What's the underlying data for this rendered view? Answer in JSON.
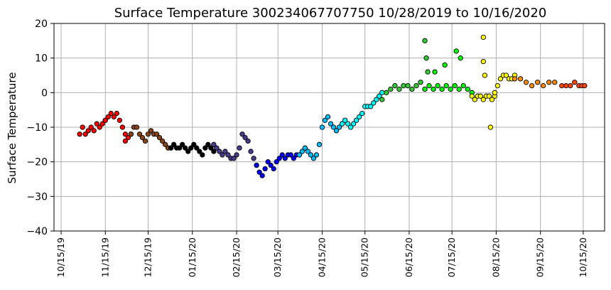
{
  "chart_data": {
    "type": "scatter",
    "title": "Surface Temperature 300234067707750  10/28/2019 to 10/16/2020",
    "xlabel": "",
    "ylabel": "Surface Temperature",
    "x_range": [
      "2019-10-10",
      "2020-10-30"
    ],
    "ylim": [
      -40,
      20
    ],
    "yticks": [
      -40,
      -30,
      -20,
      -10,
      0,
      10,
      20
    ],
    "xticks": [
      "2019-10-15",
      "2019-11-15",
      "2019-12-15",
      "2020-01-15",
      "2020-02-15",
      "2020-03-15",
      "2020-04-15",
      "2020-05-15",
      "2020-06-15",
      "2020-07-15",
      "2020-08-15",
      "2020-09-15",
      "2020-10-15"
    ],
    "xtick_labels": [
      "10/15/19",
      "11/15/19",
      "12/15/19",
      "01/15/20",
      "02/15/20",
      "03/15/20",
      "04/15/20",
      "05/15/20",
      "06/15/20",
      "07/15/20",
      "08/15/20",
      "09/15/20",
      "10/15/20"
    ],
    "grid": true,
    "series": [
      {
        "color": "#ff0000",
        "x": [
          "2019-10-28",
          "2019-10-30",
          "2019-11-01",
          "2019-11-03",
          "2019-11-05",
          "2019-11-07",
          "2019-11-09",
          "2019-11-11",
          "2019-11-13",
          "2019-11-15"
        ],
        "y": [
          -12,
          -10,
          -12,
          -11,
          -10,
          -11,
          -9,
          -10,
          -9,
          -8
        ]
      },
      {
        "color": "#ff0000",
        "x": [
          "2019-11-15",
          "2019-11-17",
          "2019-11-19",
          "2019-11-21",
          "2019-11-23",
          "2019-11-25",
          "2019-11-27",
          "2019-11-29"
        ],
        "y": [
          -8,
          -7,
          -6,
          -7,
          -6,
          -8,
          -10,
          -12
        ]
      },
      {
        "color": "#ff0000",
        "x": [
          "2019-11-29",
          "2019-12-01",
          "2019-12-03"
        ],
        "y": [
          -14,
          -13,
          -12
        ]
      },
      {
        "color": "#8b4513",
        "x": [
          "2019-12-03",
          "2019-12-05",
          "2019-12-07",
          "2019-12-09",
          "2019-12-11",
          "2019-12-13",
          "2019-12-15",
          "2019-12-17",
          "2019-12-19",
          "2019-12-21",
          "2019-12-23",
          "2019-12-25",
          "2019-12-27",
          "2019-12-29",
          "2019-12-31"
        ],
        "y": [
          -12,
          -10,
          -10,
          -12,
          -13,
          -14,
          -12,
          -11,
          -12,
          -12,
          -13,
          -14,
          -15,
          -16,
          -16
        ]
      },
      {
        "color": "#000000",
        "x": [
          "2019-12-31",
          "2020-01-02",
          "2020-01-04",
          "2020-01-06",
          "2020-01-08",
          "2020-01-10",
          "2020-01-12",
          "2020-01-14",
          "2020-01-16",
          "2020-01-18",
          "2020-01-20",
          "2020-01-22",
          "2020-01-24",
          "2020-01-26",
          "2020-01-28",
          "2020-01-30"
        ],
        "y": [
          -16,
          -15,
          -16,
          -16,
          -15,
          -16,
          -17,
          -16,
          -15,
          -16,
          -17,
          -18,
          -16,
          -15,
          -16,
          -17
        ]
      },
      {
        "color": "#483d8b",
        "x": [
          "2020-01-30",
          "2020-02-01",
          "2020-02-03",
          "2020-02-05",
          "2020-02-07",
          "2020-02-09",
          "2020-02-11",
          "2020-02-13",
          "2020-02-15",
          "2020-02-17",
          "2020-02-19",
          "2020-02-21",
          "2020-02-23",
          "2020-02-25",
          "2020-02-27",
          "2020-02-29"
        ],
        "y": [
          -15,
          -16,
          -17,
          -18,
          -17,
          -18,
          -19,
          -19,
          -18,
          -16,
          -12,
          -13,
          -14,
          -17,
          -19,
          -21
        ]
      },
      {
        "color": "#0000ff",
        "x": [
          "2020-02-29",
          "2020-03-02",
          "2020-03-04",
          "2020-03-06",
          "2020-03-08",
          "2020-03-10",
          "2020-03-12",
          "2020-03-14",
          "2020-03-16",
          "2020-03-18",
          "2020-03-20",
          "2020-03-22",
          "2020-03-24",
          "2020-03-26",
          "2020-03-28",
          "2020-03-30"
        ],
        "y": [
          -21,
          -23,
          -24,
          -22,
          -20,
          -21,
          -22,
          -20,
          -19,
          -18,
          -19,
          -18,
          -18,
          -19,
          -18,
          -18
        ]
      },
      {
        "color": "#00bfff",
        "x": [
          "2020-03-30",
          "2020-04-01",
          "2020-04-03",
          "2020-04-05",
          "2020-04-07",
          "2020-04-09",
          "2020-04-11",
          "2020-04-13",
          "2020-04-15",
          "2020-04-17",
          "2020-04-19",
          "2020-04-21",
          "2020-04-23",
          "2020-04-25",
          "2020-04-27",
          "2020-04-29"
        ],
        "y": [
          -18,
          -17,
          -16,
          -17,
          -18,
          -19,
          -18,
          -15,
          -10,
          -8,
          -7,
          -9,
          -10,
          -11,
          -10,
          -9
        ]
      },
      {
        "color": "#00ffff",
        "x": [
          "2020-04-29",
          "2020-05-01",
          "2020-05-03",
          "2020-05-05",
          "2020-05-07",
          "2020-05-09",
          "2020-05-11",
          "2020-05-13",
          "2020-05-15",
          "2020-05-17",
          "2020-05-19",
          "2020-05-21",
          "2020-05-23",
          "2020-05-25",
          "2020-05-27"
        ],
        "y": [
          -9,
          -8,
          -9,
          -10,
          -9,
          -8,
          -7,
          -6,
          -4,
          -4,
          -4,
          -3,
          -2,
          -1,
          0
        ]
      },
      {
        "color": "#32cd32",
        "x": [
          "2020-05-27",
          "2020-05-30",
          "2020-06-02",
          "2020-06-05",
          "2020-06-08",
          "2020-06-11",
          "2020-06-14",
          "2020-06-17",
          "2020-06-20",
          "2020-06-23",
          "2020-06-26"
        ],
        "y": [
          -2,
          0,
          1,
          2,
          1,
          2,
          2,
          1,
          2,
          3,
          1
        ]
      },
      {
        "color": "#32cd32",
        "x": [
          "2020-06-26",
          "2020-06-27",
          "2020-06-28"
        ],
        "y": [
          15,
          10,
          6
        ]
      },
      {
        "color": "#00ff00",
        "x": [
          "2020-06-26",
          "2020-06-29",
          "2020-07-02",
          "2020-07-05",
          "2020-07-08",
          "2020-07-11",
          "2020-07-14",
          "2020-07-17",
          "2020-07-20",
          "2020-07-23",
          "2020-07-26",
          "2020-07-29"
        ],
        "y": [
          1,
          2,
          1,
          2,
          1,
          2,
          1,
          2,
          1,
          2,
          1,
          0
        ]
      },
      {
        "color": "#00ff00",
        "x": [
          "2020-07-03",
          "2020-07-10",
          "2020-07-18",
          "2020-07-21"
        ],
        "y": [
          6,
          8,
          12,
          10
        ]
      },
      {
        "color": "#ffff00",
        "x": [
          "2020-07-29",
          "2020-07-31",
          "2020-08-02",
          "2020-08-04",
          "2020-08-06",
          "2020-08-08",
          "2020-08-10",
          "2020-08-12",
          "2020-08-14"
        ],
        "y": [
          -1,
          -2,
          -1,
          -1,
          -2,
          -1,
          -1,
          -2,
          -1
        ]
      },
      {
        "color": "#ffff00",
        "x": [
          "2020-08-06",
          "2020-08-06",
          "2020-08-07",
          "2020-08-11"
        ],
        "y": [
          16,
          9,
          5,
          -10
        ]
      },
      {
        "color": "#ffff00",
        "x": [
          "2020-08-14",
          "2020-08-16",
          "2020-08-18",
          "2020-08-20",
          "2020-08-22",
          "2020-08-24",
          "2020-08-26",
          "2020-08-28"
        ],
        "y": [
          0,
          2,
          4,
          5,
          5,
          4,
          4,
          5
        ]
      },
      {
        "color": "#ff8c00",
        "x": [
          "2020-08-28",
          "2020-09-01",
          "2020-09-05",
          "2020-09-09",
          "2020-09-13",
          "2020-09-17",
          "2020-09-21",
          "2020-09-25"
        ],
        "y": [
          4,
          4,
          3,
          2,
          3,
          2,
          3,
          3
        ]
      },
      {
        "color": "#ff4500",
        "x": [
          "2020-09-30",
          "2020-10-03",
          "2020-10-06",
          "2020-10-09",
          "2020-10-12",
          "2020-10-14",
          "2020-10-16"
        ],
        "y": [
          2,
          2,
          2,
          3,
          2,
          2,
          2
        ]
      }
    ]
  }
}
